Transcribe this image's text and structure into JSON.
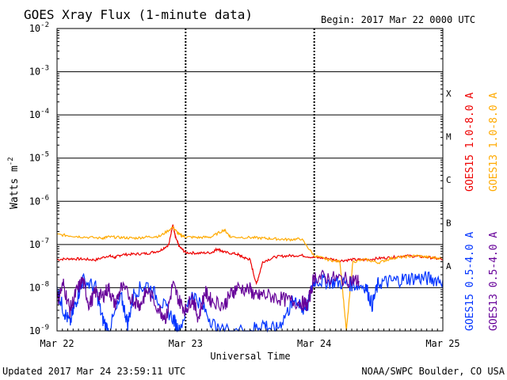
{
  "chart_data": {
    "type": "line",
    "title": "GOES Xray Flux (1-minute data)",
    "begin_label": "Begin:  2017 Mar 22 0000 UTC",
    "ylabel": "Watts m",
    "ylabel_sup": "-2",
    "xlabel": "Universal Time",
    "y_scale": "log",
    "ylim": [
      1e-09,
      0.01
    ],
    "y_ticks": [
      {
        "value": 0.01,
        "base": "10",
        "exp": "-2"
      },
      {
        "value": 0.001,
        "base": "10",
        "exp": "-3"
      },
      {
        "value": 0.0001,
        "base": "10",
        "exp": "-4"
      },
      {
        "value": 1e-05,
        "base": "10",
        "exp": "-5"
      },
      {
        "value": 1e-06,
        "base": "10",
        "exp": "-6"
      },
      {
        "value": 1e-07,
        "base": "10",
        "exp": "-7"
      },
      {
        "value": 1e-08,
        "base": "10",
        "exp": "-8"
      },
      {
        "value": 1e-09,
        "base": "10",
        "exp": "-9"
      }
    ],
    "x_ticks": [
      "Mar 22",
      "Mar 23",
      "Mar 24",
      "Mar 25"
    ],
    "xlim_days": [
      0,
      3
    ],
    "flare_classes": [
      {
        "label": "X",
        "value": 0.000316
      },
      {
        "label": "M",
        "value": 3.16e-05
      },
      {
        "label": "C",
        "value": 3.16e-06
      },
      {
        "label": "B",
        "value": 3.16e-07
      },
      {
        "label": "A",
        "value": 3.16e-08
      }
    ],
    "series": [
      {
        "name": "GOES15 1.0-8.0 A",
        "color": "#ee0000",
        "points": [
          [
            0.0,
            4.5e-08
          ],
          [
            0.1,
            4.7e-08
          ],
          [
            0.2,
            4.6e-08
          ],
          [
            0.3,
            4.4e-08
          ],
          [
            0.4,
            5.5e-08
          ],
          [
            0.45,
            5e-08
          ],
          [
            0.5,
            5.8e-08
          ],
          [
            0.6,
            6e-08
          ],
          [
            0.7,
            6.2e-08
          ],
          [
            0.8,
            7.2e-08
          ],
          [
            0.87,
            1e-07
          ],
          [
            0.9,
            3e-07
          ],
          [
            0.92,
            1.5e-07
          ],
          [
            0.95,
            9e-08
          ],
          [
            1.0,
            6.5e-08
          ],
          [
            1.1,
            6.3e-08
          ],
          [
            1.2,
            6.5e-08
          ],
          [
            1.25,
            8e-08
          ],
          [
            1.3,
            6.6e-08
          ],
          [
            1.4,
            6e-08
          ],
          [
            1.45,
            5e-08
          ],
          [
            1.5,
            4.5e-08
          ],
          [
            1.55,
            1.2e-08
          ],
          [
            1.6,
            4e-08
          ],
          [
            1.7,
            5.2e-08
          ],
          [
            1.8,
            5.5e-08
          ],
          [
            1.9,
            5.6e-08
          ],
          [
            2.0,
            5e-08
          ],
          [
            2.1,
            4.8e-08
          ],
          [
            2.2,
            4.2e-08
          ],
          [
            2.3,
            4.5e-08
          ],
          [
            2.4,
            4.4e-08
          ],
          [
            2.5,
            4.8e-08
          ],
          [
            2.6,
            5e-08
          ],
          [
            2.7,
            5.5e-08
          ],
          [
            2.8,
            5.3e-08
          ],
          [
            2.9,
            5e-08
          ],
          [
            3.0,
            4.5e-08
          ]
        ]
      },
      {
        "name": "GOES13 1.0-8.0 A",
        "color": "#ffaa00",
        "points": [
          [
            0.0,
            1.7e-07
          ],
          [
            0.1,
            1.6e-07
          ],
          [
            0.2,
            1.5e-07
          ],
          [
            0.35,
            1.4e-07
          ],
          [
            0.4,
            1.5e-07
          ],
          [
            0.5,
            1.45e-07
          ],
          [
            0.6,
            1.4e-07
          ],
          [
            0.7,
            1.5e-07
          ],
          [
            0.8,
            1.55e-07
          ],
          [
            0.9,
            2.5e-07
          ],
          [
            0.95,
            1.7e-07
          ],
          [
            1.0,
            1.5e-07
          ],
          [
            1.1,
            1.45e-07
          ],
          [
            1.2,
            1.5e-07
          ],
          [
            1.3,
            2.2e-07
          ],
          [
            1.35,
            1.5e-07
          ],
          [
            1.5,
            1.45e-07
          ],
          [
            1.6,
            1.4e-07
          ],
          [
            1.7,
            1.35e-07
          ],
          [
            1.8,
            1.3e-07
          ],
          [
            1.9,
            1.35e-07
          ],
          [
            2.0,
            5.5e-08
          ],
          [
            2.1,
            4.5e-08
          ],
          [
            2.2,
            4e-08
          ],
          [
            2.25,
            1e-09
          ],
          [
            2.3,
            4e-08
          ],
          [
            2.4,
            4.5e-08
          ],
          [
            2.5,
            3.8e-08
          ],
          [
            2.6,
            4.8e-08
          ],
          [
            2.7,
            5.2e-08
          ],
          [
            2.8,
            5.5e-08
          ],
          [
            2.9,
            5e-08
          ],
          [
            3.0,
            4.8e-08
          ]
        ]
      },
      {
        "name": "GOES15 0.5-4.0 A",
        "color": "#0033ff",
        "points": [
          [
            0.0,
            1e-08
          ],
          [
            0.05,
            3e-09
          ],
          [
            0.1,
            1.5e-09
          ],
          [
            0.15,
            5e-09
          ],
          [
            0.2,
            1.5e-08
          ],
          [
            0.3,
            1e-08
          ],
          [
            0.35,
            2e-09
          ],
          [
            0.4,
            1e-09
          ],
          [
            0.5,
            6e-09
          ],
          [
            0.55,
            1.5e-09
          ],
          [
            0.6,
            8e-09
          ],
          [
            0.7,
            1.2e-08
          ],
          [
            0.8,
            5e-09
          ],
          [
            0.9,
            2e-09
          ],
          [
            0.95,
            1e-09
          ],
          [
            1.05,
            8e-09
          ],
          [
            1.15,
            3e-09
          ],
          [
            1.25,
            1e-09
          ],
          [
            1.5,
            1e-09
          ],
          [
            1.6,
            1.5e-09
          ],
          [
            1.7,
            1e-09
          ],
          [
            1.8,
            3e-09
          ],
          [
            1.85,
            6e-09
          ],
          [
            1.9,
            3e-09
          ],
          [
            1.95,
            4e-09
          ],
          [
            2.0,
            1.5e-08
          ],
          [
            2.1,
            1.4e-08
          ],
          [
            2.2,
            1.3e-08
          ],
          [
            2.3,
            1.2e-08
          ],
          [
            2.4,
            1.1e-08
          ],
          [
            2.45,
            4e-09
          ],
          [
            2.5,
            1.3e-08
          ],
          [
            2.6,
            1.4e-08
          ],
          [
            2.7,
            1.6e-08
          ],
          [
            2.8,
            1.7e-08
          ],
          [
            2.9,
            1.6e-08
          ],
          [
            3.0,
            1.5e-08
          ]
        ]
      },
      {
        "name": "GOES13 0.5-4.0 A",
        "color": "#660099",
        "points": [
          [
            0.0,
            5e-09
          ],
          [
            0.05,
            1.2e-08
          ],
          [
            0.1,
            3e-09
          ],
          [
            0.15,
            8e-09
          ],
          [
            0.2,
            1.5e-08
          ],
          [
            0.25,
            4e-09
          ],
          [
            0.3,
            8e-09
          ],
          [
            0.35,
            6e-09
          ],
          [
            0.4,
            1e-08
          ],
          [
            0.45,
            4e-09
          ],
          [
            0.5,
            1e-08
          ],
          [
            0.6,
            5e-09
          ],
          [
            0.65,
            4e-09
          ],
          [
            0.7,
            9e-09
          ],
          [
            0.8,
            3e-09
          ],
          [
            0.85,
            2e-09
          ],
          [
            0.9,
            1.2e-08
          ],
          [
            0.95,
            5e-09
          ],
          [
            1.0,
            3e-09
          ],
          [
            1.05,
            6e-09
          ],
          [
            1.1,
            2e-09
          ],
          [
            1.15,
            8e-09
          ],
          [
            1.2,
            5e-09
          ],
          [
            1.3,
            4e-09
          ],
          [
            1.35,
            7e-09
          ],
          [
            1.4,
            1e-08
          ],
          [
            1.5,
            9e-09
          ],
          [
            1.55,
            6e-09
          ],
          [
            1.6,
            7e-09
          ],
          [
            1.7,
            6e-09
          ],
          [
            1.8,
            5e-09
          ],
          [
            1.9,
            4.5e-09
          ],
          [
            1.95,
            4e-09
          ],
          [
            2.0,
            1.8e-08
          ],
          [
            2.1,
            1.7e-08
          ],
          [
            2.2,
            1.6e-08
          ],
          [
            2.3,
            1.5e-08
          ],
          [
            2.35,
            1.4e-08
          ]
        ]
      }
    ],
    "footer_left": "Updated 2017 Mar 24 23:59:11 UTC",
    "footer_right": "NOAA/SWPC Boulder, CO USA"
  }
}
